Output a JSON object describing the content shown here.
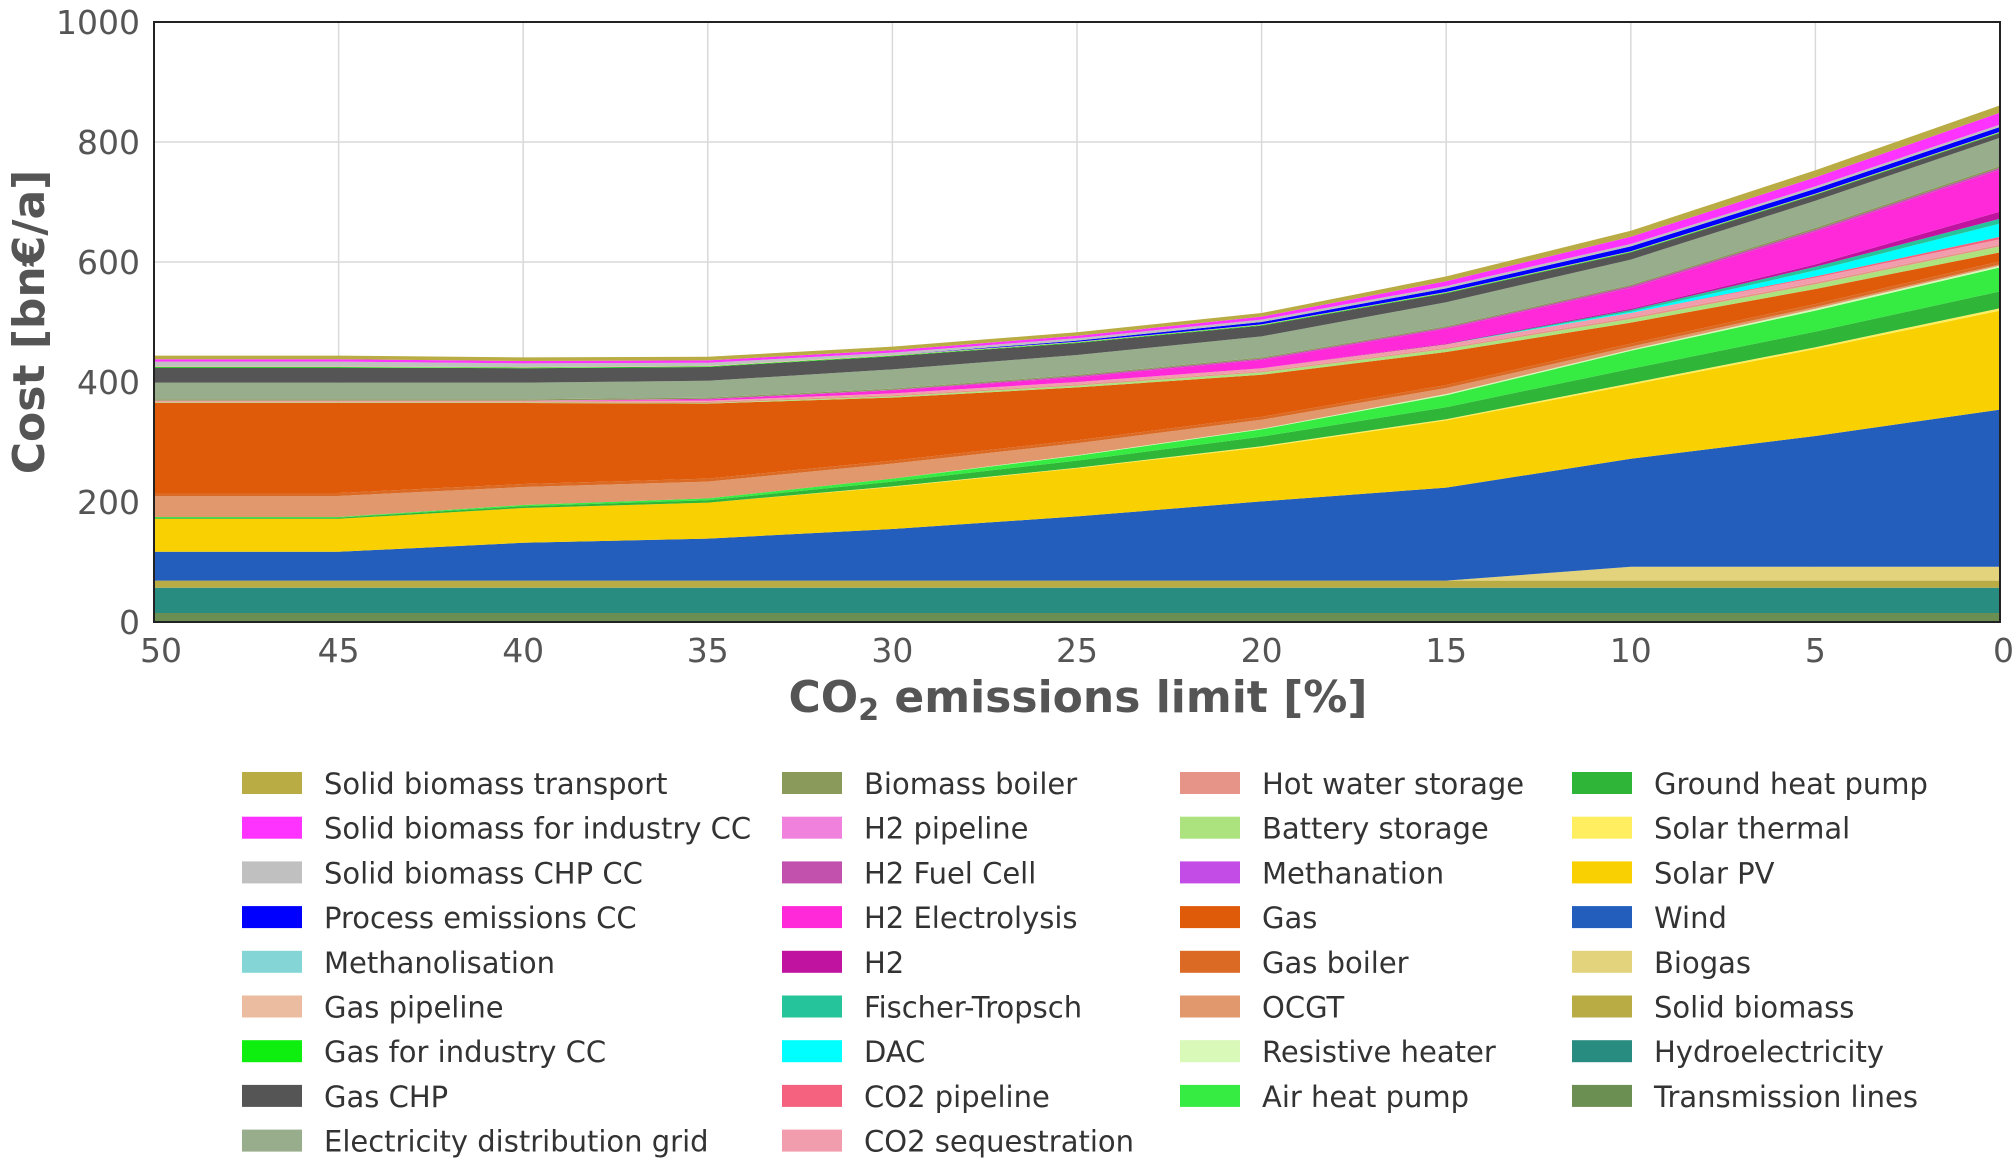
{
  "chart_data": {
    "type": "area",
    "stacked": true,
    "xlabel_main": "CO",
    "xlabel_sub": "2",
    "xlabel_rest": " emissions limit [%]",
    "ylabel": "Cost [bn€/a]",
    "x": [
      50,
      45,
      40,
      35,
      30,
      25,
      20,
      15,
      10,
      5,
      0
    ],
    "xticks": [
      "50",
      "45",
      "40",
      "35",
      "30",
      "25",
      "20",
      "15",
      "10",
      "5",
      "0"
    ],
    "ylim": [
      0,
      1000
    ],
    "yticks": [
      "0",
      "200",
      "400",
      "600",
      "800",
      "1000"
    ],
    "ytick_values": [
      0,
      200,
      400,
      600,
      800,
      1000
    ],
    "grid": true,
    "legend_position": "bottom",
    "series": [
      {
        "name": "Transmission lines",
        "color": "#6b8e52",
        "values": [
          15,
          15,
          15,
          15,
          15,
          15,
          15,
          15,
          15,
          15,
          15
        ]
      },
      {
        "name": "Hydroelectricity",
        "color": "#298c81",
        "values": [
          42,
          42,
          42,
          42,
          42,
          42,
          42,
          42,
          42,
          42,
          42
        ]
      },
      {
        "name": "Solid biomass",
        "color": "#baac44",
        "values": [
          12,
          12,
          12,
          12,
          12,
          12,
          12,
          12,
          12,
          12,
          12
        ]
      },
      {
        "name": "Biogas",
        "color": "#e3d37d",
        "values": [
          0,
          0,
          0,
          0,
          0,
          0,
          0,
          0,
          23,
          23,
          23
        ]
      },
      {
        "name": "Wind",
        "color": "#235ebc",
        "values": [
          48,
          48,
          63,
          70,
          86,
          107,
          132,
          155,
          180,
          218,
          262
        ]
      },
      {
        "name": "Solar PV",
        "color": "#f9d002",
        "values": [
          55,
          55,
          58,
          60,
          70,
          80,
          90,
          112,
          123,
          145,
          165
        ]
      },
      {
        "name": "Solar thermal",
        "color": "#ffef60",
        "values": [
          0,
          0,
          0,
          0,
          1,
          1,
          2,
          2,
          3,
          3,
          4
        ]
      },
      {
        "name": "Ground heat pump",
        "color": "#2fb537",
        "values": [
          2,
          2,
          3,
          4,
          8,
          12,
          16,
          20,
          24,
          26,
          28
        ]
      },
      {
        "name": "Air heat pump",
        "color": "#36eb41",
        "values": [
          1,
          1,
          2,
          3,
          5,
          8,
          12,
          20,
          30,
          35,
          40
        ]
      },
      {
        "name": "Resistive heater",
        "color": "#d8f9b8",
        "values": [
          0,
          0,
          0,
          0,
          0,
          1,
          1,
          2,
          2,
          3,
          3
        ]
      },
      {
        "name": "OCGT",
        "color": "#e0986c",
        "values": [
          35,
          35,
          30,
          28,
          25,
          20,
          15,
          10,
          5,
          3,
          2
        ]
      },
      {
        "name": "Gas boiler",
        "color": "#db6a25",
        "values": [
          5,
          5,
          5,
          5,
          5,
          5,
          5,
          5,
          5,
          5,
          5
        ]
      },
      {
        "name": "Gas",
        "color": "#e05b09",
        "values": [
          150,
          150,
          135,
          125,
          105,
          88,
          70,
          55,
          35,
          25,
          15
        ]
      },
      {
        "name": "Methanation",
        "color": "#c44ce6",
        "values": [
          0,
          0,
          0,
          0,
          0,
          0,
          0,
          0,
          0,
          0,
          0
        ]
      },
      {
        "name": "Battery storage",
        "color": "#ace37f",
        "values": [
          1,
          1,
          1,
          1,
          2,
          3,
          4,
          5,
          6,
          8,
          10
        ]
      },
      {
        "name": "Hot water storage",
        "color": "#e69487",
        "values": [
          2,
          2,
          2,
          2,
          2,
          2,
          2,
          2,
          3,
          3,
          3
        ]
      },
      {
        "name": "CO2 sequestration",
        "color": "#f29dae",
        "values": [
          1,
          1,
          1,
          2,
          3,
          4,
          5,
          6,
          7,
          8,
          9
        ]
      },
      {
        "name": "CO2 pipeline",
        "color": "#f5627f",
        "values": [
          0,
          0,
          0,
          0,
          0,
          0,
          0,
          0,
          0,
          2,
          4
        ]
      },
      {
        "name": "DAC",
        "color": "#00ffff",
        "values": [
          0,
          0,
          0,
          0,
          0,
          0,
          0,
          0,
          2,
          10,
          22
        ]
      },
      {
        "name": "Fischer-Tropsch",
        "color": "#25c49a",
        "values": [
          0,
          0,
          0,
          0,
          0,
          0,
          0,
          0,
          3,
          6,
          8
        ]
      },
      {
        "name": "H2",
        "color": "#bf13a0",
        "values": [
          0,
          0,
          0,
          0,
          0,
          0,
          0,
          1,
          2,
          4,
          12
        ]
      },
      {
        "name": "H2 Electrolysis",
        "color": "#ff29d9",
        "values": [
          0,
          0,
          0,
          2,
          5,
          8,
          14,
          25,
          35,
          55,
          70
        ]
      },
      {
        "name": "H2 Fuel Cell",
        "color": "#c251ae",
        "values": [
          0,
          0,
          0,
          1,
          1,
          2,
          2,
          2,
          3,
          3,
          3
        ]
      },
      {
        "name": "H2 pipeline",
        "color": "#f081dc",
        "values": [
          0,
          0,
          0,
          0,
          0,
          0,
          0,
          0,
          0,
          0,
          0
        ]
      },
      {
        "name": "Biomass boiler",
        "color": "#8a9a5b",
        "values": [
          2,
          2,
          2,
          2,
          2,
          2,
          2,
          2,
          2,
          3,
          3
        ]
      },
      {
        "name": "Electricity distribution grid",
        "color": "#97ad8c",
        "values": [
          28,
          28,
          28,
          28,
          32,
          33,
          35,
          40,
          42,
          45,
          47
        ]
      },
      {
        "name": "Gas CHP",
        "color": "#555555",
        "values": [
          25,
          25,
          24,
          23,
          22,
          20,
          18,
          15,
          12,
          10,
          8
        ]
      },
      {
        "name": "Gas for industry CC",
        "color": "#0fef0f",
        "values": [
          1,
          1,
          1,
          1,
          1,
          1,
          1,
          1,
          1,
          1,
          1
        ]
      },
      {
        "name": "Gas pipeline",
        "color": "#ebbca0",
        "values": [
          1,
          1,
          1,
          1,
          1,
          1,
          1,
          1,
          1,
          1,
          1
        ]
      },
      {
        "name": "Methanolisation",
        "color": "#83d6d5",
        "values": [
          0,
          0,
          0,
          0,
          0,
          0,
          0,
          0,
          0,
          0,
          0
        ]
      },
      {
        "name": "Process emissions CC",
        "color": "#0000ff",
        "values": [
          0,
          0,
          0,
          0,
          0,
          2,
          4,
          6,
          8,
          8,
          8
        ]
      },
      {
        "name": "Solid biomass CHP CC",
        "color": "#c0c0c0",
        "values": [
          8,
          8,
          6,
          5,
          4,
          4,
          4,
          4,
          4,
          4,
          4
        ]
      },
      {
        "name": "Solid biomass for industry CC",
        "color": "#ff33ff",
        "values": [
          4,
          4,
          4,
          4,
          4,
          4,
          5,
          8,
          12,
          15,
          20
        ]
      },
      {
        "name": "Solid biomass transport",
        "color": "#baac44",
        "values": [
          6,
          6,
          6,
          6,
          6,
          6,
          6,
          8,
          10,
          12,
          12
        ]
      }
    ],
    "legend_columns": [
      [
        "Solid biomass transport",
        "Solid biomass for industry CC",
        "Solid biomass CHP CC",
        "Process emissions CC",
        "Methanolisation",
        "Gas pipeline",
        "Gas for industry CC",
        "Gas CHP",
        "Electricity distribution grid"
      ],
      [
        "Biomass boiler",
        "H2 pipeline",
        "H2 Fuel Cell",
        "H2 Electrolysis",
        "H2",
        "Fischer-Tropsch",
        "DAC",
        "CO2 pipeline",
        "CO2 sequestration"
      ],
      [
        "Hot water storage",
        "Battery storage",
        "Methanation",
        "Gas",
        "Gas boiler",
        "OCGT",
        "Resistive heater",
        "Air heat pump"
      ],
      [
        "Ground heat pump",
        "Solar thermal",
        "Solar PV",
        "Wind",
        "Biogas",
        "Solid biomass",
        "Hydroelectricity",
        "Transmission lines"
      ]
    ]
  }
}
